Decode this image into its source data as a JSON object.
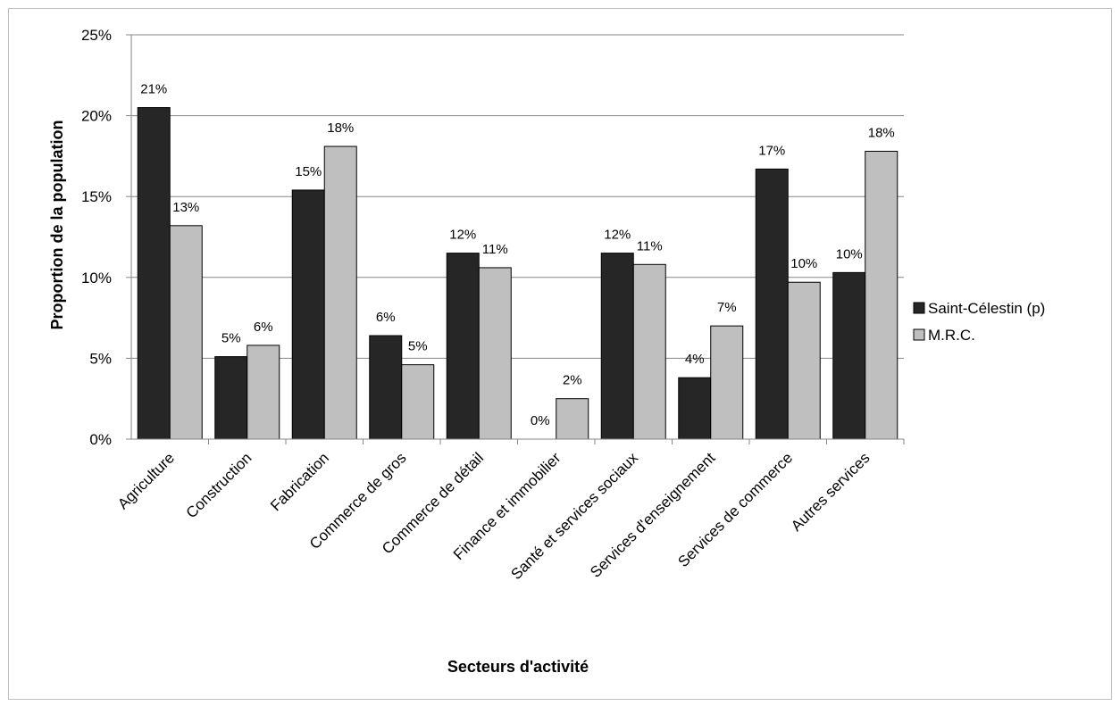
{
  "chart_data": {
    "type": "bar",
    "title": "",
    "xlabel": "Secteurs d'activité",
    "ylabel": "Proportion de la population",
    "ylim": [
      0,
      25
    ],
    "y_unit": "%",
    "y_ticks": [
      "0%",
      "5%",
      "10%",
      "15%",
      "20%",
      "25%"
    ],
    "grid": true,
    "legend_position": "right",
    "categories": [
      "Agriculture",
      "Construction",
      "Fabrication",
      "Commerce de gros",
      "Commerce de détail",
      "Finance et immobilier",
      "Santé et services sociaux",
      "Services d'enseignement",
      "Services de commerce",
      "Autres services"
    ],
    "series": [
      {
        "name": "Saint-Célestin (p)",
        "color": "#262626",
        "values": [
          20.5,
          5.1,
          15.4,
          6.4,
          11.5,
          0,
          11.5,
          3.8,
          16.7,
          10.3
        ],
        "labels": [
          "21%",
          "5%",
          "15%",
          "6%",
          "12%",
          "0%",
          "12%",
          "4%",
          "17%",
          "10%"
        ]
      },
      {
        "name": "M.R.C.",
        "color": "#bfbfbf",
        "values": [
          13.2,
          5.8,
          18.1,
          4.6,
          10.6,
          2.5,
          10.8,
          7.0,
          9.7,
          17.8
        ],
        "labels": [
          "13%",
          "6%",
          "18%",
          "5%",
          "11%",
          "2%",
          "11%",
          "7%",
          "10%",
          "18%"
        ]
      }
    ]
  }
}
